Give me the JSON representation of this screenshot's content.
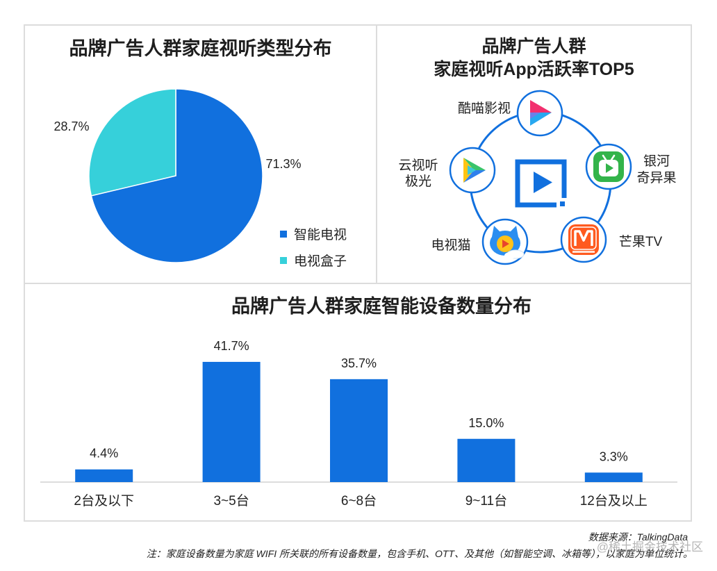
{
  "chart_data": [
    {
      "type": "pie",
      "title": "品牌广告人群家庭视听类型分布",
      "categories": [
        "智能电视",
        "电视盒子"
      ],
      "values": [
        71.3,
        28.7
      ],
      "value_labels": [
        "71.3%",
        "28.7%"
      ],
      "colors": [
        "#1170DE",
        "#36D0DA"
      ],
      "legend": "bottom-right"
    },
    {
      "type": "bar",
      "title": "品牌广告人群家庭智能设备数量分布",
      "categories": [
        "2台及以下",
        "3~5台",
        "6~8台",
        "9~11台",
        "12台及以上"
      ],
      "values": [
        4.4,
        41.7,
        35.7,
        15.0,
        3.3
      ],
      "value_labels": [
        "4.4%",
        "41.7%",
        "35.7%",
        "15.0%",
        "3.3%"
      ],
      "xlabel": "",
      "ylabel": "",
      "ylim": [
        0,
        50
      ],
      "grid": false,
      "color": "#1170DE"
    }
  ],
  "app_panel": {
    "title_lines": [
      "品牌广告人群",
      "家庭视听App活跃率TOP5"
    ],
    "ring_color": "#1170DE",
    "center_icon": "tv-play-icon",
    "apps": [
      {
        "name_lines": [
          "酷喵影视"
        ],
        "icon": "kumiao-logo-icon"
      },
      {
        "name_lines": [
          "银河",
          "奇异果"
        ],
        "icon": "yinhe-qiyiguo-logo-icon"
      },
      {
        "name_lines": [
          "芒果TV"
        ],
        "icon": "mango-tv-logo-icon"
      },
      {
        "name_lines": [
          "电视猫"
        ],
        "icon": "dianshimao-logo-icon"
      },
      {
        "name_lines": [
          "云视听",
          "极光"
        ],
        "icon": "yunshiting-jiguang-logo-icon"
      }
    ]
  },
  "footer": {
    "source": "数据来源：TalkingData",
    "note": "注：家庭设备数量为家庭 WIFI 所关联的所有设备数量，包含手机、OTT、及其他（如智能空调、冰箱等），以家庭为单位统计。",
    "watermark": "@稀土掘金技术社区"
  }
}
